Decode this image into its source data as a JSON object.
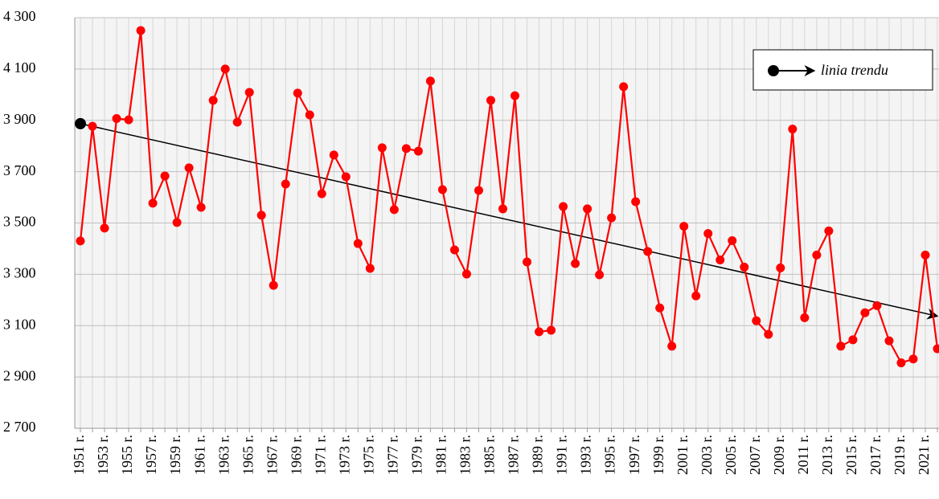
{
  "chart_data": {
    "type": "line",
    "categories": [
      "1951 r.",
      null,
      "1953 r.",
      null,
      "1955 r.",
      null,
      "1957 r.",
      null,
      "1959 r.",
      null,
      "1961 r.",
      null,
      "1963 r.",
      null,
      "1965 r.",
      null,
      "1967 r.",
      null,
      "1969 r.",
      null,
      "1971 r.",
      null,
      "1973 r.",
      null,
      "1975 r.",
      null,
      "1977 r.",
      null,
      "1979 r.",
      null,
      "1981 r.",
      null,
      "1983 r.",
      null,
      "1985 r.",
      null,
      "1987 r.",
      null,
      "1989 r.",
      null,
      "1991 r.",
      null,
      "1993 r.",
      null,
      "1995 r.",
      null,
      "1997 r.",
      null,
      "1999 r.",
      null,
      "2001 r.",
      null,
      "2003 r.",
      null,
      "2005 r.",
      null,
      "2007 r.",
      null,
      "2009 r.",
      null,
      "2011 r.",
      null,
      "2013 r.",
      null,
      "2015 r.",
      null,
      "2017 r.",
      null,
      "2019 r.",
      null,
      "2021 r.",
      null
    ],
    "series": [
      {
        "color": "#ff0000",
        "values": [
          3430,
          3877,
          3480,
          3907,
          3902,
          4250,
          3577,
          3683,
          3502,
          3715,
          3561,
          3978,
          4100,
          3893,
          4009,
          3530,
          3257,
          3652,
          4006,
          3921,
          3614,
          3765,
          3680,
          3420,
          3323,
          3793,
          3552,
          3790,
          3780,
          4053,
          3630,
          3395,
          3301,
          3627,
          3978,
          3555,
          3996,
          3348,
          3076,
          3082,
          3564,
          3342,
          3555,
          3298,
          3520,
          4031,
          3583,
          3389,
          3169,
          3020,
          3487,
          3216,
          3459,
          3356,
          3431,
          3328,
          3119,
          3066,
          3325,
          3866,
          3131,
          3375,
          3469,
          3020,
          3045,
          3150,
          3178,
          3041,
          2955,
          2970,
          3375,
          3010
        ]
      }
    ],
    "trend": {
      "name": "linia trendu",
      "color": "#000000",
      "start": 3887,
      "end": 3137
    },
    "ylim": [
      2700,
      4300
    ],
    "yticks": [
      {
        "value": 2700,
        "label": "2 700"
      },
      {
        "value": 2900,
        "label": "2 900"
      },
      {
        "value": 3100,
        "label": "3 100"
      },
      {
        "value": 3300,
        "label": "3 300"
      },
      {
        "value": 3500,
        "label": "3 500"
      },
      {
        "value": 3700,
        "label": "3 700"
      },
      {
        "value": 3900,
        "label": "3 900"
      },
      {
        "value": 4100,
        "label": "4 100"
      },
      {
        "value": 4300,
        "label": "4 300"
      }
    ],
    "grid": true,
    "legend_position": "upper right"
  }
}
